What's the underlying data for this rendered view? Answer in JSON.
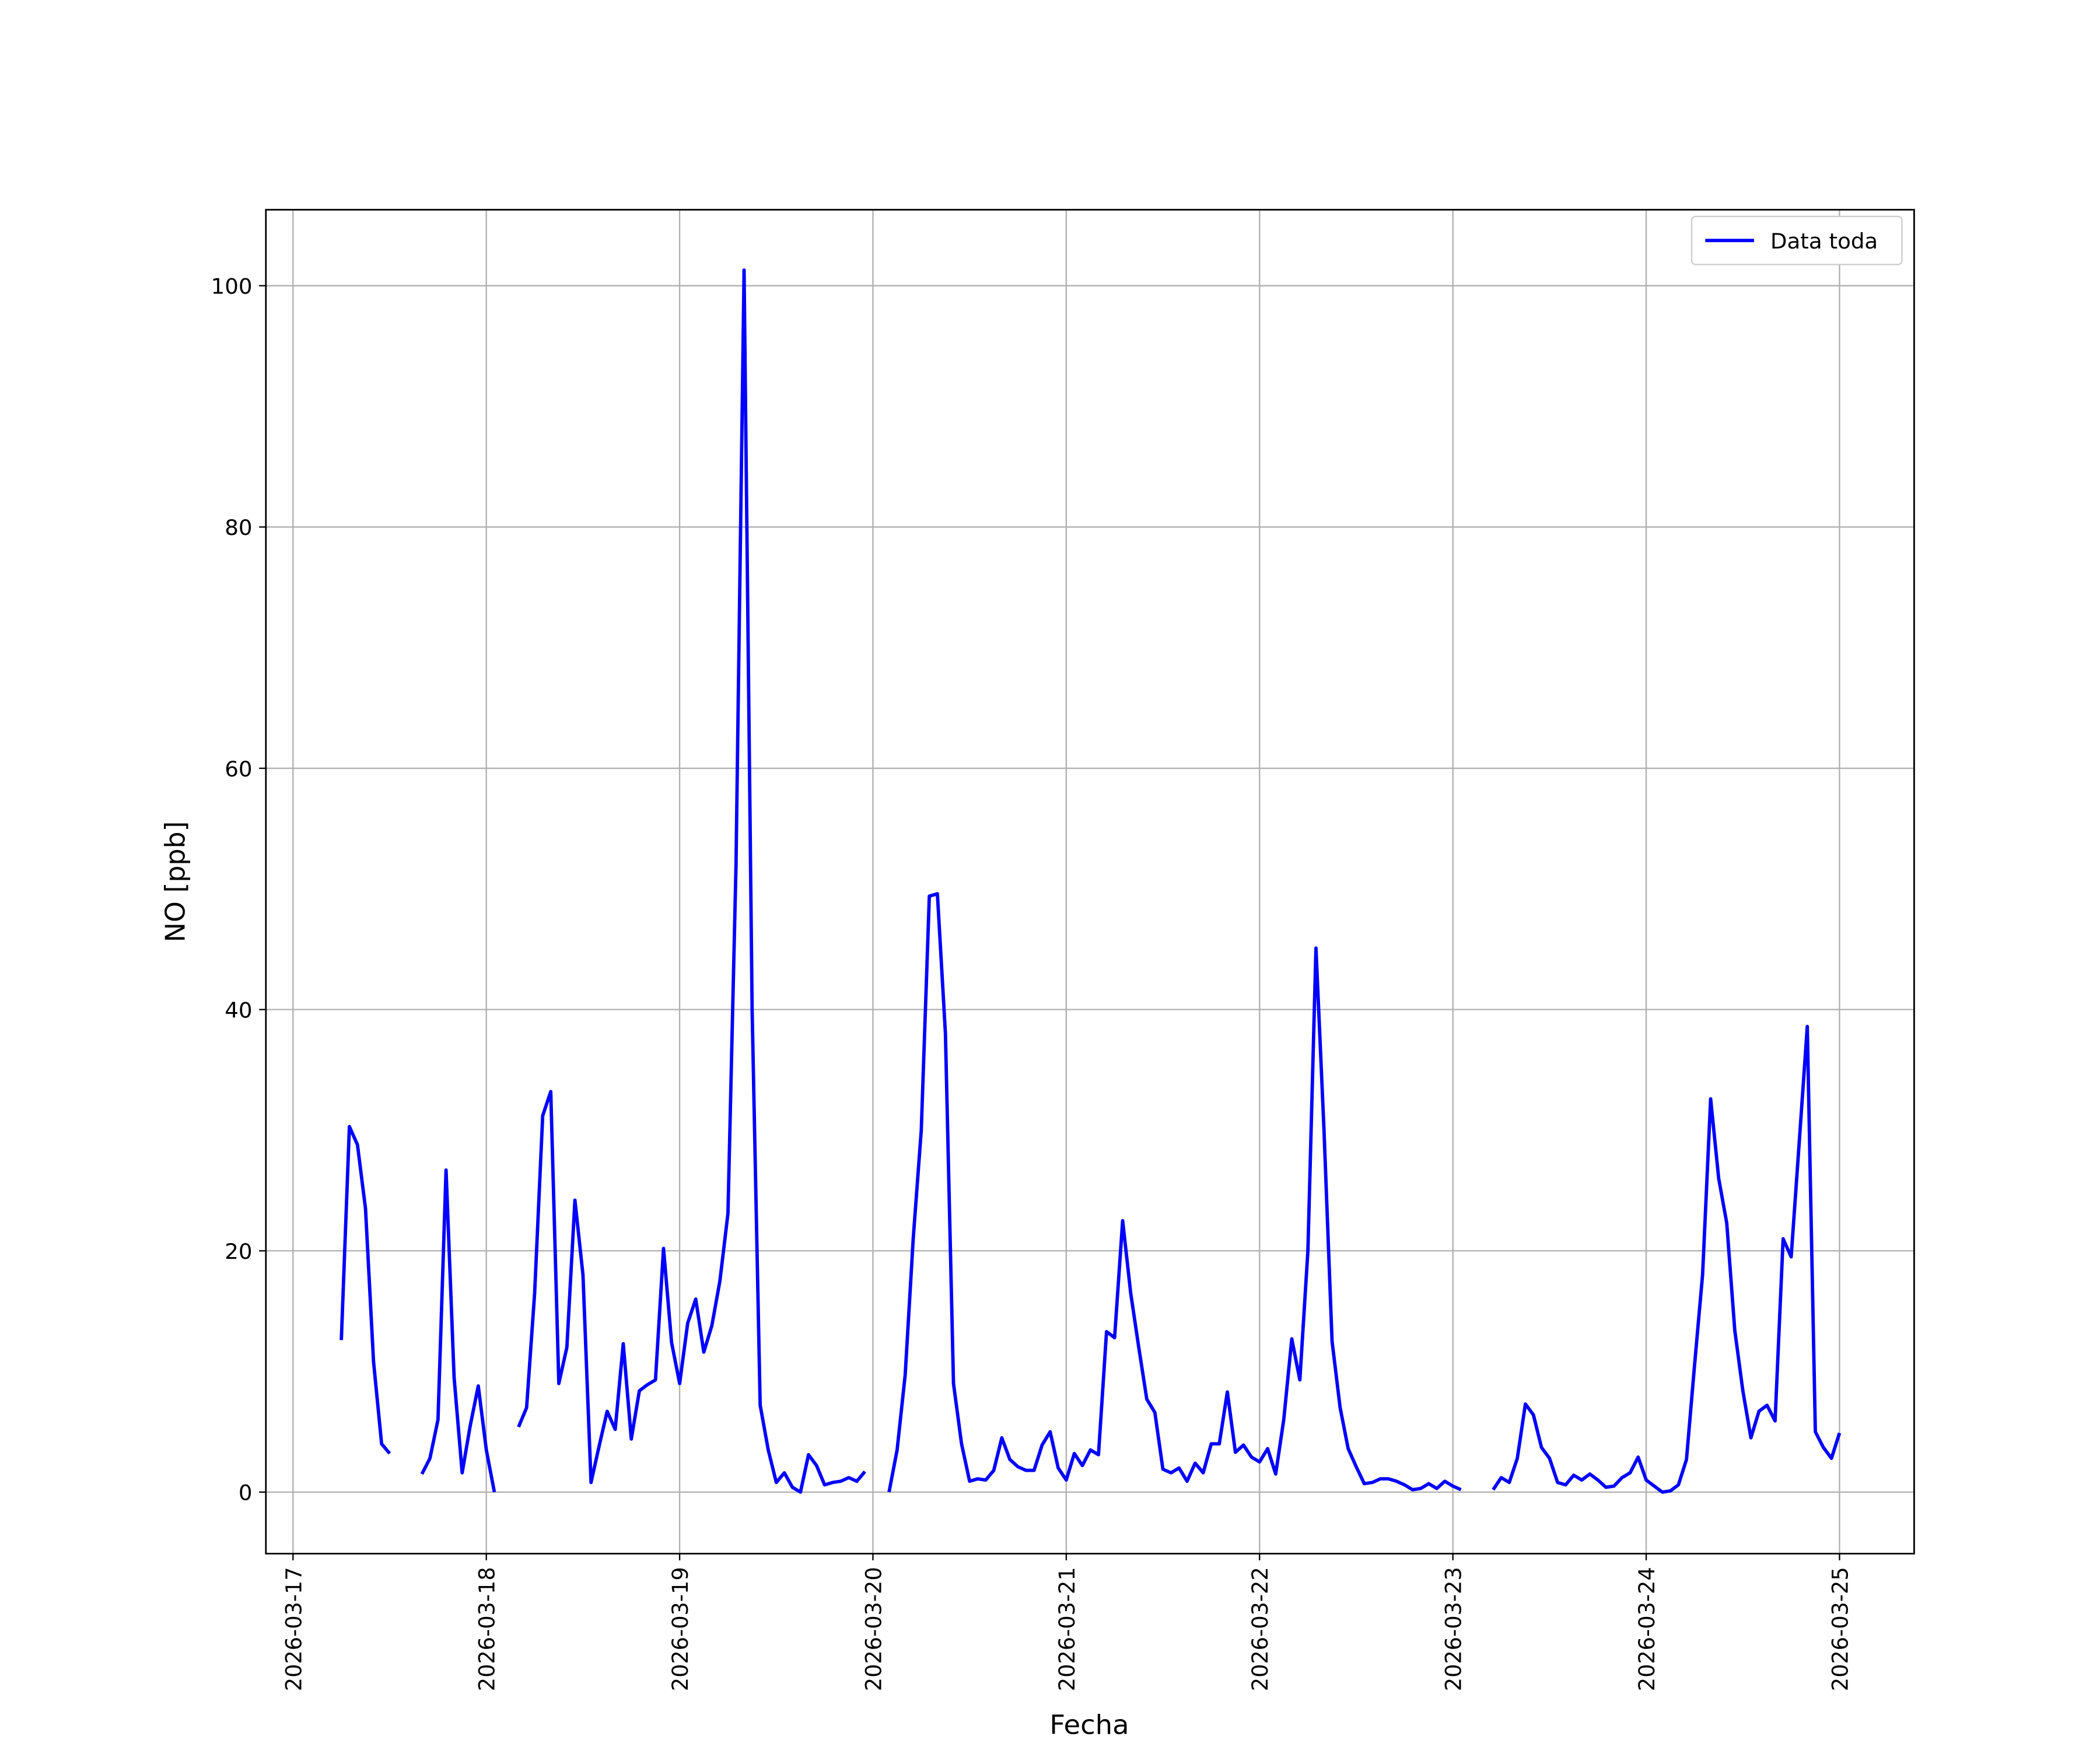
{
  "chart_data": {
    "type": "line",
    "xlabel": "Fecha",
    "ylabel": "NO [ppb]",
    "x": [
      "2026-03-17 06:00",
      "2026-03-17 07:00",
      "2026-03-17 08:00",
      "2026-03-17 09:00",
      "2026-03-17 10:00",
      "2026-03-17 11:00",
      "2026-03-17 12:00",
      "2026-03-17 13:00",
      "2026-03-17 14:00",
      "2026-03-17 15:00",
      "2026-03-17 16:00",
      "2026-03-17 17:00",
      "2026-03-17 18:00",
      "2026-03-17 19:00",
      "2026-03-17 20:00",
      "2026-03-17 21:00",
      "2026-03-17 22:00",
      "2026-03-17 23:00",
      "2026-03-18 00:00",
      "2026-03-18 01:00",
      "2026-03-18 02:00",
      "2026-03-18 03:00",
      "2026-03-18 04:00",
      "2026-03-18 05:00",
      "2026-03-18 06:00",
      "2026-03-18 07:00",
      "2026-03-18 08:00",
      "2026-03-18 09:00",
      "2026-03-18 10:00",
      "2026-03-18 11:00",
      "2026-03-18 12:00",
      "2026-03-18 13:00",
      "2026-03-18 14:00",
      "2026-03-18 15:00",
      "2026-03-18 16:00",
      "2026-03-18 17:00",
      "2026-03-18 18:00",
      "2026-03-18 19:00",
      "2026-03-18 20:00",
      "2026-03-18 21:00",
      "2026-03-18 22:00",
      "2026-03-18 23:00",
      "2026-03-19 00:00",
      "2026-03-19 01:00",
      "2026-03-19 02:00",
      "2026-03-19 03:00",
      "2026-03-19 04:00",
      "2026-03-19 05:00",
      "2026-03-19 06:00",
      "2026-03-19 07:00",
      "2026-03-19 08:00",
      "2026-03-19 09:00",
      "2026-03-19 10:00",
      "2026-03-19 11:00",
      "2026-03-19 12:00",
      "2026-03-19 13:00",
      "2026-03-19 14:00",
      "2026-03-19 15:00",
      "2026-03-19 16:00",
      "2026-03-19 17:00",
      "2026-03-19 18:00",
      "2026-03-19 19:00",
      "2026-03-19 20:00",
      "2026-03-19 21:00",
      "2026-03-19 22:00",
      "2026-03-19 23:00",
      "2026-03-20 00:00",
      "2026-03-20 01:00",
      "2026-03-20 02:00",
      "2026-03-20 03:00",
      "2026-03-20 04:00",
      "2026-03-20 05:00",
      "2026-03-20 06:00",
      "2026-03-20 07:00",
      "2026-03-20 08:00",
      "2026-03-20 09:00",
      "2026-03-20 10:00",
      "2026-03-20 11:00",
      "2026-03-20 12:00",
      "2026-03-20 13:00",
      "2026-03-20 14:00",
      "2026-03-20 15:00",
      "2026-03-20 16:00",
      "2026-03-20 17:00",
      "2026-03-20 18:00",
      "2026-03-20 19:00",
      "2026-03-20 20:00",
      "2026-03-20 21:00",
      "2026-03-20 22:00",
      "2026-03-20 23:00",
      "2026-03-21 00:00",
      "2026-03-21 01:00",
      "2026-03-21 02:00",
      "2026-03-21 03:00",
      "2026-03-21 04:00",
      "2026-03-21 05:00",
      "2026-03-21 06:00",
      "2026-03-21 07:00",
      "2026-03-21 08:00",
      "2026-03-21 09:00",
      "2026-03-21 10:00",
      "2026-03-21 11:00",
      "2026-03-21 12:00",
      "2026-03-21 13:00",
      "2026-03-21 14:00",
      "2026-03-21 15:00",
      "2026-03-21 16:00",
      "2026-03-21 17:00",
      "2026-03-21 18:00",
      "2026-03-21 19:00",
      "2026-03-21 20:00",
      "2026-03-21 21:00",
      "2026-03-21 22:00",
      "2026-03-21 23:00",
      "2026-03-22 00:00",
      "2026-03-22 01:00",
      "2026-03-22 02:00",
      "2026-03-22 03:00",
      "2026-03-22 04:00",
      "2026-03-22 05:00",
      "2026-03-22 06:00",
      "2026-03-22 07:00",
      "2026-03-22 08:00",
      "2026-03-22 09:00",
      "2026-03-22 10:00",
      "2026-03-22 11:00",
      "2026-03-22 12:00",
      "2026-03-22 13:00",
      "2026-03-22 14:00",
      "2026-03-22 15:00",
      "2026-03-22 16:00",
      "2026-03-22 17:00",
      "2026-03-22 18:00",
      "2026-03-22 19:00",
      "2026-03-22 20:00",
      "2026-03-22 21:00",
      "2026-03-22 22:00",
      "2026-03-22 23:00",
      "2026-03-23 00:00",
      "2026-03-23 01:00",
      "2026-03-23 02:00",
      "2026-03-23 03:00",
      "2026-03-23 04:00",
      "2026-03-23 05:00",
      "2026-03-23 06:00",
      "2026-03-23 07:00",
      "2026-03-23 08:00",
      "2026-03-23 09:00",
      "2026-03-23 10:00",
      "2026-03-23 11:00",
      "2026-03-23 12:00",
      "2026-03-23 13:00",
      "2026-03-23 14:00",
      "2026-03-23 15:00",
      "2026-03-23 16:00",
      "2026-03-23 17:00",
      "2026-03-23 18:00",
      "2026-03-23 19:00",
      "2026-03-23 20:00",
      "2026-03-23 21:00",
      "2026-03-23 22:00",
      "2026-03-23 23:00",
      "2026-03-24 00:00",
      "2026-03-24 01:00",
      "2026-03-24 02:00",
      "2026-03-24 03:00",
      "2026-03-24 04:00",
      "2026-03-24 05:00",
      "2026-03-24 06:00",
      "2026-03-24 07:00",
      "2026-03-24 08:00",
      "2026-03-24 09:00",
      "2026-03-24 10:00",
      "2026-03-24 11:00",
      "2026-03-24 12:00",
      "2026-03-24 13:00",
      "2026-03-24 14:00",
      "2026-03-24 15:00",
      "2026-03-24 16:00",
      "2026-03-24 17:00",
      "2026-03-24 18:00",
      "2026-03-24 19:00",
      "2026-03-24 20:00",
      "2026-03-24 21:00",
      "2026-03-24 22:00",
      "2026-03-24 23:00",
      "2026-03-25 00:00"
    ],
    "series": [
      {
        "name": "Data toda",
        "color": "#0000ff",
        "values": [
          12.6,
          30.3,
          28.8,
          23.5,
          10.8,
          4,
          3.2,
          null,
          null,
          null,
          1.5,
          2.8,
          6,
          26.7,
          9.5,
          1.6,
          5.5,
          8.8,
          3.5,
          0,
          null,
          null,
          5.4,
          7,
          16.5,
          31.2,
          33.2,
          9,
          12,
          24.2,
          18,
          0.8,
          3.8,
          6.7,
          5.2,
          12.3,
          4.4,
          8.4,
          8.9,
          9.3,
          20.2,
          12.4,
          9,
          14,
          16,
          11.6,
          13.8,
          17.5,
          23.1,
          52,
          101.3,
          40,
          7.2,
          3.5,
          0.8,
          1.6,
          0.4,
          0,
          3.1,
          2.2,
          0.6,
          0.8,
          0.9,
          1.2,
          0.9,
          1.7,
          null,
          null,
          0,
          3.5,
          9.7,
          21,
          30,
          49.4,
          49.6,
          38,
          9,
          4,
          0.9,
          1.1,
          1,
          1.8,
          4.5,
          2.7,
          2.1,
          1.8,
          1.8,
          3.9,
          5,
          2,
          1,
          3.2,
          2.2,
          3.5,
          3.1,
          13.3,
          12.8,
          22.5,
          16.5,
          12,
          7.7,
          6.6,
          1.9,
          1.6,
          2,
          0.9,
          2.4,
          1.6,
          4,
          4,
          8.3,
          3.3,
          3.9,
          2.9,
          2.5,
          3.6,
          1.5,
          6,
          12.7,
          9.3,
          20,
          45.1,
          30,
          12.5,
          7,
          3.6,
          2.1,
          0.7,
          0.8,
          1.1,
          1.1,
          0.9,
          0.6,
          0.2,
          0.3,
          0.7,
          0.3,
          0.9,
          0.5,
          0.2,
          null,
          null,
          null,
          0.2,
          1.2,
          0.8,
          2.8,
          7.3,
          6.4,
          3.7,
          2.8,
          0.8,
          0.6,
          1.4,
          1,
          1.5,
          1,
          0.4,
          0.5,
          1.2,
          1.6,
          2.9,
          1,
          0.5,
          0,
          0.1,
          0.6,
          2.7,
          10.5,
          18,
          32.6,
          26,
          22.3,
          13.4,
          8.4,
          4.5,
          6.7,
          7.2,
          5.9,
          21,
          19.5,
          29,
          38.6,
          5,
          3.7,
          2.8,
          4.9
        ]
      }
    ],
    "xlim": [
      "2026-03-16 20:38",
      "2026-03-25 09:16"
    ],
    "xticks": [
      "2026-03-17",
      "2026-03-18",
      "2026-03-19",
      "2026-03-20",
      "2026-03-21",
      "2026-03-22",
      "2026-03-23",
      "2026-03-24",
      "2026-03-25"
    ],
    "ylim": [
      -5.1,
      106.3
    ],
    "yticks": [
      0,
      20,
      40,
      60,
      80,
      100
    ],
    "grid": true,
    "legend": "upper right"
  }
}
